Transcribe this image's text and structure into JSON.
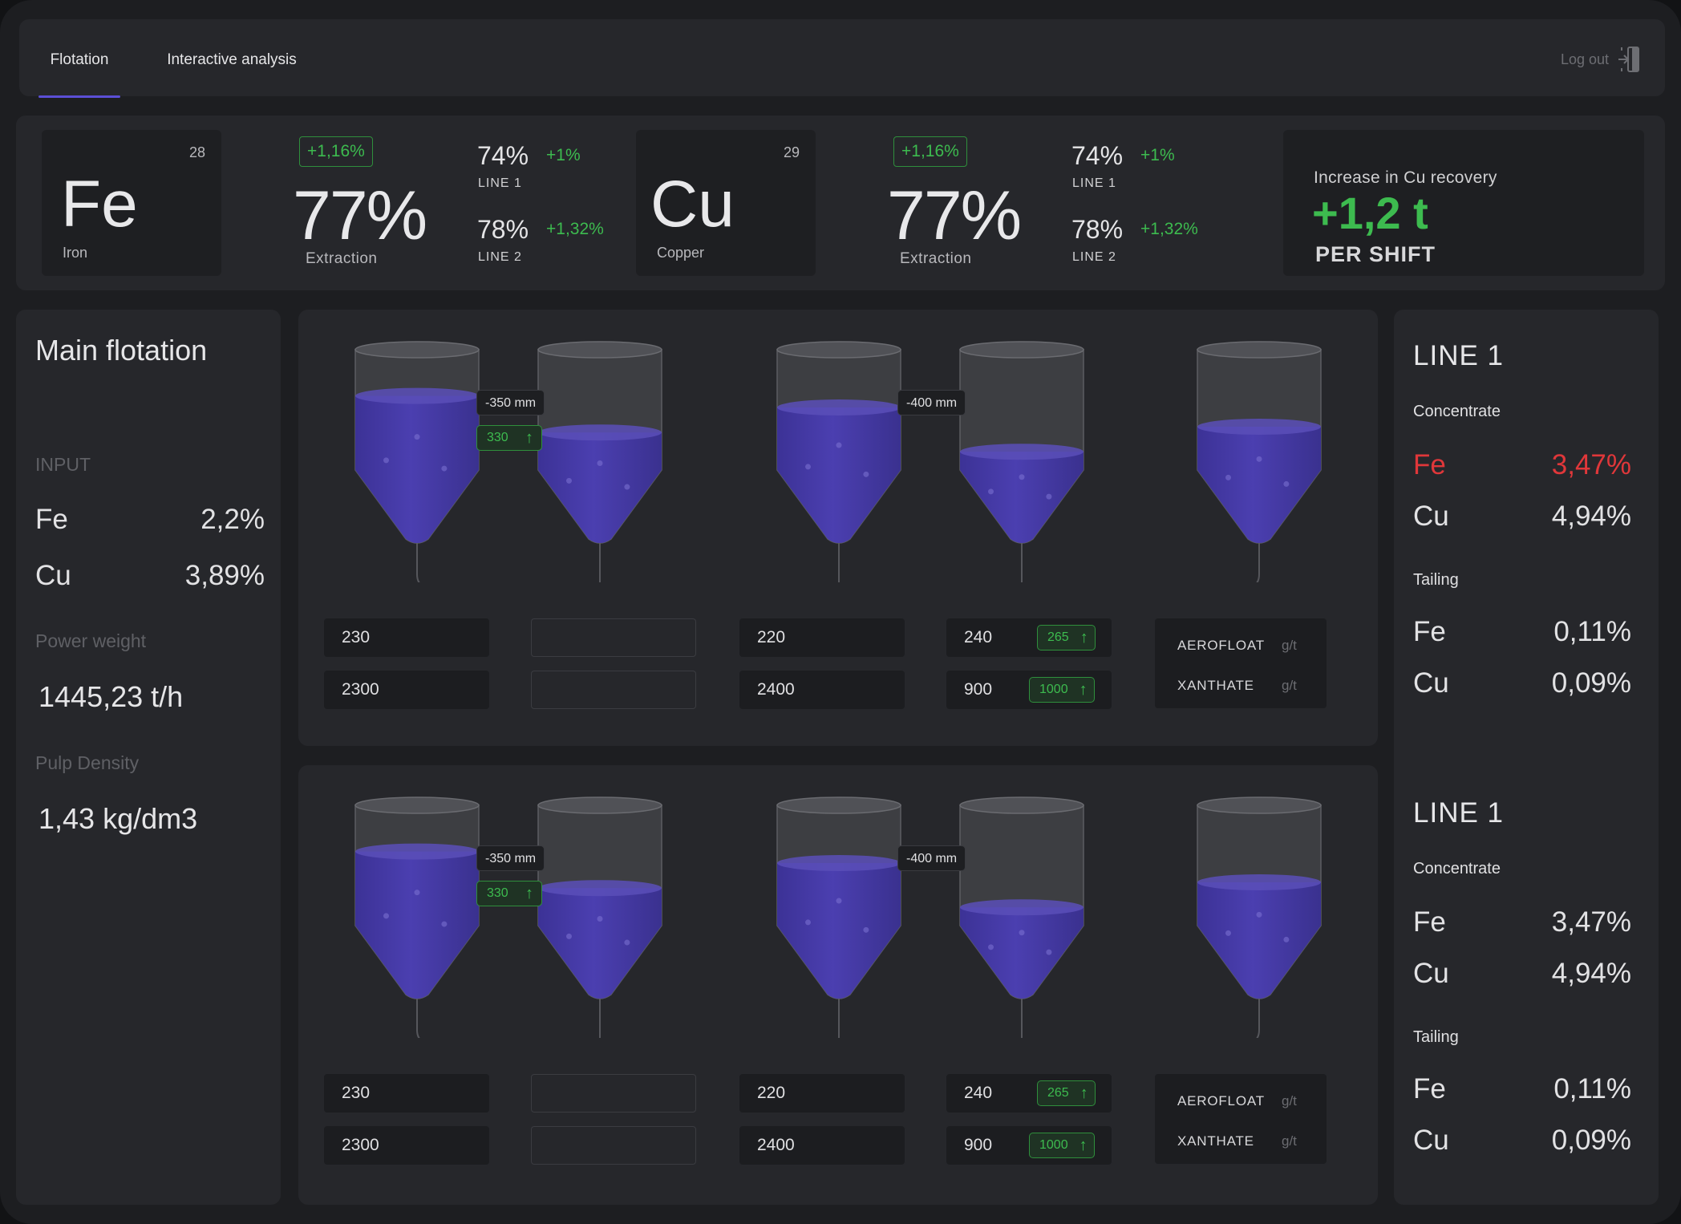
{
  "nav": {
    "tabs": [
      {
        "label": "Flotation",
        "active": true
      },
      {
        "label": "Interactive analysis",
        "active": false
      }
    ],
    "logout_label": "Log out",
    "logout_icon": "logout-icon"
  },
  "summary": {
    "fe": {
      "number": "28",
      "symbol": "Fe",
      "name": "Iron",
      "badge": "+1,16%",
      "extraction": "77%",
      "extraction_label": "Extraction",
      "line1_pct": "74%",
      "line1_delta": "+1%",
      "line1_label": "LINE 1",
      "line2_pct": "78%",
      "line2_delta": "+1,32%",
      "line2_label": "LINE 2"
    },
    "cu": {
      "number": "29",
      "symbol": "Cu",
      "name": "Copper",
      "badge": "+1,16%",
      "extraction": "77%",
      "extraction_label": "Extraction",
      "line1_pct": "74%",
      "line1_delta": "+1%",
      "line1_label": "LINE 1",
      "line2_pct": "78%",
      "line2_delta": "+1,32%",
      "line2_label": "LINE 2"
    },
    "recovery": {
      "title": "Increase in Cu recovery",
      "value": "+1,2 t",
      "unit": "PER SHIFT"
    }
  },
  "left": {
    "title": "Main flotation",
    "input_label": "INPUT",
    "fe_label": "Fe",
    "fe_value": "2,2%",
    "cu_label": "Cu",
    "cu_value": "3,89%",
    "power_label": "Power weight",
    "power_value": "1445,23 t/h",
    "density_label": "Pulp Density",
    "density_value": "1,43 kg/dm3"
  },
  "process": [
    {
      "gap1": "-350 mm",
      "flow1": "330",
      "gap2": "-400 mm",
      "fill_levels": [
        0.76,
        0.57,
        0.7,
        0.47,
        0.6
      ],
      "row1": [
        "230",
        "",
        "220",
        "240"
      ],
      "row2": [
        "2300",
        "",
        "2400",
        "900"
      ],
      "badge_top": "265",
      "badge_bottom": "1000",
      "reagent1": "AEROFLOAT",
      "reagent2": "XANTHATE",
      "unit": "g/t"
    },
    {
      "gap1": "-350 mm",
      "flow1": "330",
      "gap2": "-400 mm",
      "fill_levels": [
        0.76,
        0.57,
        0.7,
        0.47,
        0.6
      ],
      "row1": [
        "230",
        "",
        "220",
        "240"
      ],
      "row2": [
        "2300",
        "",
        "2400",
        "900"
      ],
      "badge_top": "265",
      "badge_bottom": "1000",
      "reagent1": "AEROFLOAT",
      "reagent2": "XANTHATE",
      "unit": "g/t"
    }
  ],
  "right": [
    {
      "title": "LINE 1",
      "concentrate_label": "Concentrate",
      "conc_fe_label": "Fe",
      "conc_fe": "3,47%",
      "conc_cu_label": "Cu",
      "conc_cu": "4,94%",
      "tailing_label": "Tailing",
      "tail_fe_label": "Fe",
      "tail_fe": "0,11%",
      "tail_cu_label": "Cu",
      "tail_cu": "0,09%"
    },
    {
      "title": "LINE 1",
      "concentrate_label": "Concentrate",
      "conc_fe_label": "Fe",
      "conc_fe": "3,47%",
      "conc_cu_label": "Cu",
      "conc_cu": "4,94%",
      "tailing_label": "Tailing",
      "tail_fe_label": "Fe",
      "tail_fe": "0,11%",
      "tail_cu_label": "Cu",
      "tail_cu": "0,09%"
    }
  ],
  "colors": {
    "accent": "#5b4fd6",
    "positive": "#3dbb4f",
    "alert": "#e0373a",
    "liquid": "#4b3fb0"
  }
}
